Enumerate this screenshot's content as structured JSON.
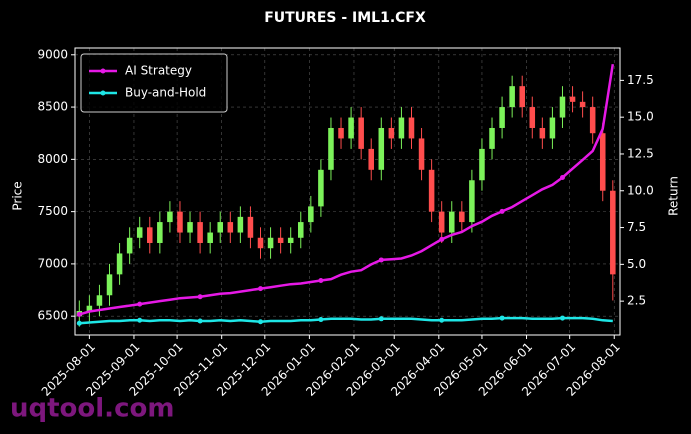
{
  "chart_data": {
    "type": "candlestick",
    "title": "FUTURES - IML1.CFX",
    "y_label": "Price",
    "y2_label": "Return",
    "watermark": "uqtool.com",
    "x": [
      "2025-07-25",
      "2025-08-01",
      "2025-08-08",
      "2025-08-15",
      "2025-08-22",
      "2025-08-29",
      "2025-09-05",
      "2025-09-12",
      "2025-09-19",
      "2025-09-26",
      "2025-10-03",
      "2025-10-10",
      "2025-10-17",
      "2025-10-24",
      "2025-10-31",
      "2025-11-07",
      "2025-11-14",
      "2025-11-21",
      "2025-11-28",
      "2025-12-05",
      "2025-12-12",
      "2025-12-19",
      "2025-12-26",
      "2026-01-02",
      "2026-01-09",
      "2026-01-16",
      "2026-01-23",
      "2026-01-30",
      "2026-02-06",
      "2026-02-13",
      "2026-02-20",
      "2026-02-27",
      "2026-03-06",
      "2026-03-13",
      "2026-03-20",
      "2026-03-27",
      "2026-04-03",
      "2026-04-10",
      "2026-04-17",
      "2026-04-24",
      "2026-05-01",
      "2026-05-08",
      "2026-05-15",
      "2026-05-22",
      "2026-05-29",
      "2026-06-05",
      "2026-06-12",
      "2026-06-19",
      "2026-06-26",
      "2026-07-03",
      "2026-07-10",
      "2026-07-17",
      "2026-07-24",
      "2026-07-31"
    ],
    "open": [
      6500,
      6550,
      6600,
      6700,
      6900,
      7100,
      7250,
      7350,
      7200,
      7400,
      7500,
      7300,
      7400,
      7200,
      7300,
      7400,
      7300,
      7450,
      7250,
      7150,
      7250,
      7200,
      7250,
      7400,
      7550,
      7900,
      8300,
      8200,
      8400,
      8100,
      7900,
      8300,
      8200,
      8400,
      8200,
      7900,
      7500,
      7300,
      7500,
      7400,
      7800,
      8100,
      8300,
      8500,
      8700,
      8500,
      8300,
      8200,
      8400,
      8600,
      8550,
      8500,
      8250,
      7700
    ],
    "high": [
      6650,
      6700,
      6800,
      7000,
      7200,
      7350,
      7450,
      7450,
      7500,
      7600,
      7600,
      7500,
      7500,
      7400,
      7500,
      7500,
      7550,
      7550,
      7350,
      7350,
      7350,
      7350,
      7500,
      7650,
      8000,
      8400,
      8400,
      8500,
      8500,
      8200,
      8400,
      8400,
      8500,
      8500,
      8300,
      8000,
      7600,
      7600,
      7600,
      7900,
      8200,
      8400,
      8600,
      8800,
      8800,
      8600,
      8400,
      8500,
      8700,
      8700,
      8650,
      8600,
      8350,
      7800
    ],
    "low": [
      6400,
      6450,
      6500,
      6600,
      6800,
      7000,
      7150,
      7100,
      7100,
      7300,
      7200,
      7200,
      7100,
      7100,
      7200,
      7200,
      7200,
      7150,
      7050,
      7050,
      7100,
      7100,
      7150,
      7300,
      7450,
      7800,
      8100,
      8100,
      8000,
      7800,
      7800,
      8100,
      8100,
      8100,
      7800,
      7400,
      7200,
      7200,
      7300,
      7300,
      7700,
      8000,
      8200,
      8400,
      8400,
      8200,
      8100,
      8100,
      8300,
      8450,
      8400,
      8150,
      7600,
      6650
    ],
    "close": [
      6550,
      6600,
      6700,
      6900,
      7100,
      7250,
      7350,
      7200,
      7400,
      7500,
      7300,
      7400,
      7200,
      7300,
      7400,
      7300,
      7450,
      7250,
      7150,
      7250,
      7200,
      7250,
      7400,
      7550,
      7900,
      8300,
      8200,
      8400,
      8100,
      7900,
      8300,
      8200,
      8400,
      8200,
      7900,
      7500,
      7300,
      7500,
      7400,
      7800,
      8100,
      8300,
      8500,
      8700,
      8500,
      8300,
      8200,
      8400,
      8600,
      8550,
      8500,
      8250,
      7700,
      6900
    ],
    "up_color": "#7cf25a",
    "down_color": "#ff4d4d",
    "series": [
      {
        "name": "AI Strategy",
        "color": "#e619e6",
        "axis": "y2",
        "values": [
          1.6,
          1.8,
          1.9,
          2.0,
          2.1,
          2.2,
          2.3,
          2.4,
          2.5,
          2.6,
          2.7,
          2.75,
          2.8,
          2.9,
          3.0,
          3.05,
          3.15,
          3.25,
          3.35,
          3.45,
          3.55,
          3.65,
          3.7,
          3.8,
          3.9,
          4.0,
          4.3,
          4.5,
          4.6,
          5.0,
          5.3,
          5.35,
          5.4,
          5.6,
          5.9,
          6.3,
          6.7,
          7.0,
          7.2,
          7.6,
          7.9,
          8.3,
          8.6,
          8.9,
          9.3,
          9.7,
          10.1,
          10.4,
          10.9,
          11.5,
          12.1,
          12.7,
          14.2,
          18.6
        ]
      },
      {
        "name": "Buy-and-Hold",
        "color": "#1ee6e6",
        "axis": "y2",
        "values": [
          1.0,
          1.05,
          1.1,
          1.15,
          1.15,
          1.2,
          1.2,
          1.15,
          1.2,
          1.2,
          1.15,
          1.2,
          1.15,
          1.15,
          1.2,
          1.15,
          1.2,
          1.15,
          1.1,
          1.15,
          1.15,
          1.15,
          1.2,
          1.2,
          1.25,
          1.3,
          1.3,
          1.3,
          1.25,
          1.25,
          1.3,
          1.3,
          1.3,
          1.3,
          1.25,
          1.2,
          1.2,
          1.2,
          1.2,
          1.25,
          1.3,
          1.3,
          1.35,
          1.35,
          1.35,
          1.3,
          1.3,
          1.3,
          1.35,
          1.35,
          1.35,
          1.3,
          1.2,
          1.15
        ]
      }
    ],
    "xlim": [
      "2025-07-22",
      "2026-08-05"
    ],
    "xticks": [
      "2025-08-01",
      "2025-09-01",
      "2025-10-01",
      "2025-11-01",
      "2025-12-01",
      "2026-01-01",
      "2026-02-01",
      "2026-03-01",
      "2026-04-01",
      "2026-05-01",
      "2026-06-01",
      "2026-07-01",
      "2026-08-01"
    ],
    "ylim": [
      6320,
      9065
    ],
    "yticks": [
      6500,
      7000,
      7500,
      8000,
      8500,
      9000
    ],
    "y2lim": [
      0.2,
      19.7
    ],
    "y2ticks": [
      2.5,
      {
        "value": 5,
        "label": "5.0"
      },
      7.5,
      {
        "value": 10,
        "label": "10.0"
      },
      12.5,
      {
        "value": 15,
        "label": "15.0"
      },
      17.5
    ],
    "grid": true,
    "legend": "upper left"
  }
}
